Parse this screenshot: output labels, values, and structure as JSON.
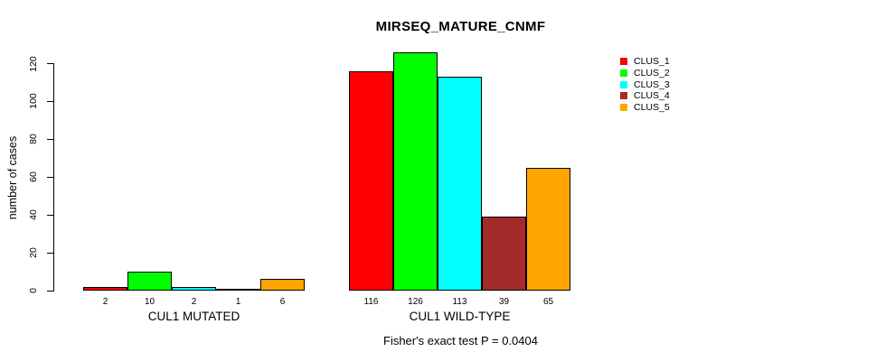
{
  "title": "MIRSEQ_MATURE_CNMF",
  "footer_note": "Fisher's exact test P = 0.0404",
  "legend": {
    "entries": [
      {
        "label": "CLUS_1",
        "color": "#ff0000"
      },
      {
        "label": "CLUS_2",
        "color": "#00ff00"
      },
      {
        "label": "CLUS_3",
        "color": "#00ffff"
      },
      {
        "label": "CLUS_4",
        "color": "#a52a2a"
      },
      {
        "label": "CLUS_5",
        "color": "#ffa500"
      }
    ]
  },
  "chart_data": {
    "type": "bar",
    "title": "MIRSEQ_MATURE_CNMF",
    "xlabel": "",
    "ylabel": "number of cases",
    "ylim": [
      0,
      126
    ],
    "yticks": [
      0,
      20,
      40,
      60,
      80,
      100,
      120
    ],
    "grid": false,
    "legend_position": "top-right",
    "series_names": [
      "CLUS_1",
      "CLUS_2",
      "CLUS_3",
      "CLUS_4",
      "CLUS_5"
    ],
    "series_colors": [
      "#ff0000",
      "#00ff00",
      "#00ffff",
      "#a52a2a",
      "#ffa500"
    ],
    "groups": [
      {
        "label": "CUL1 MUTATED",
        "values": [
          2,
          10,
          2,
          1,
          6
        ]
      },
      {
        "label": "CUL1 WILD-TYPE",
        "values": [
          116,
          126,
          113,
          39,
          65
        ]
      }
    ],
    "annotation": "Fisher's exact test P = 0.0404"
  }
}
